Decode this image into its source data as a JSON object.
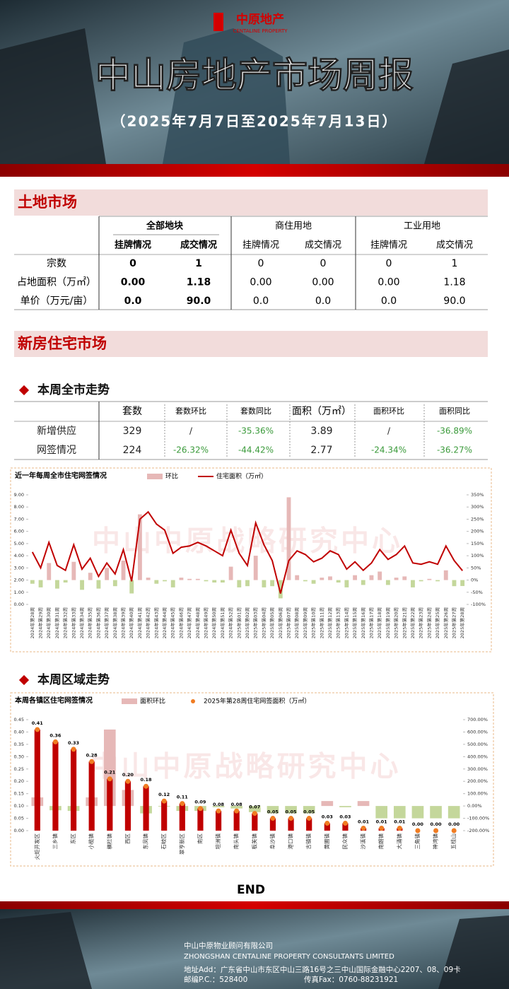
{
  "header": {
    "logo": "中原地产",
    "logo_en": "CENTALINE PROPERTY",
    "title": "中山房地产市场周报",
    "subtitle": "（2025年7月7日至2025年7月13日）"
  },
  "land_market": {
    "heading": "土地市场",
    "table": {
      "groups": [
        "全部地块",
        "商住用地",
        "工业用地"
      ],
      "columns": [
        "挂牌情况",
        "成交情况",
        "挂牌情况",
        "成交情况",
        "挂牌情况",
        "成交情况"
      ],
      "rows": [
        [
          "宗数",
          "0",
          "1",
          "0",
          "0",
          "0",
          "1"
        ],
        [
          "占地面积（万㎡）",
          "0.00",
          "1.18",
          "0.00",
          "0.00",
          "0.00",
          "1.18"
        ],
        [
          "单价（万元/亩）",
          "0.0",
          "90.0",
          "0.0",
          "0.0",
          "0.0",
          "90.0"
        ]
      ]
    }
  },
  "new_home_market": {
    "heading": "新房住宅市场",
    "city_trend": {
      "heading": "本周全市走势",
      "table": {
        "columns": [
          "套数",
          "套数环比",
          "套数同比",
          "面积（万㎡）",
          "面积环比",
          "面积同比"
        ],
        "rows": [
          [
            "新增供应",
            "329",
            "/",
            "-35.36%",
            "3.89",
            "/",
            "-36.89%"
          ],
          [
            "网签情况",
            "224",
            "-26.32%",
            "-44.42%",
            "2.77",
            "-24.34%",
            "-36.27%"
          ]
        ]
      }
    },
    "district_trend": {
      "heading": "本周区域走势"
    }
  },
  "watermark": "中山中原战略研究中心",
  "chart_data": [
    {
      "type": "combo",
      "title": "近一年每周全市住宅网签情况",
      "categories": [
        "2024年第28周",
        "2024年第29周",
        "2024年第30周",
        "2024年第31周",
        "2024年第32周",
        "2024年第33周",
        "2024年第34周",
        "2024年第35周",
        "2024年第36周",
        "2024年第37周",
        "2024年第38周",
        "2024年第39周",
        "2024年第40周",
        "2024年第41周",
        "2024年第42周",
        "2024年第43周",
        "2024年第44周",
        "2024年第45周",
        "2024年第46周",
        "2024年第47周",
        "2024年第48周",
        "2024年第49周",
        "2024年第50周",
        "2024年第51周",
        "2024年第52周",
        "2025年第01周",
        "2025年第02周",
        "2025年第03周",
        "2025年第04周",
        "2025年第05周",
        "2025年第06周",
        "2025年第07周",
        "2025年第08周",
        "2025年第09周",
        "2025年第10周",
        "2025年第11周",
        "2025年第12周",
        "2025年第13周",
        "2025年第14周",
        "2025年第15周",
        "2025年第16周",
        "2025年第17周",
        "2025年第18周",
        "2025年第19周",
        "2025年第20周",
        "2025年第21周",
        "2025年第22周",
        "2025年第23周",
        "2025年第24周",
        "2025年第25周",
        "2025年第26周",
        "2025年第27周",
        "2025年第28周"
      ],
      "series": [
        {
          "name": "环比",
          "type": "bar",
          "axis": "y2",
          "color": "#e6b8b7",
          "negative_color": "#c4d79b",
          "values": [
            -15,
            -30,
            70,
            -35,
            -10,
            75,
            -40,
            30,
            -35,
            50,
            -25,
            80,
            -55,
            270,
            10,
            -15,
            -5,
            -30,
            10,
            5,
            5,
            -5,
            -10,
            -10,
            55,
            -30,
            -25,
            100,
            -30,
            -25,
            -75,
            340,
            20,
            -5,
            -15,
            10,
            15,
            -10,
            -30,
            20,
            -20,
            20,
            35,
            -20,
            10,
            15,
            -30,
            -5,
            5,
            -5,
            40,
            -25,
            -24.34
          ]
        },
        {
          "name": "住宅面积（万㎡）",
          "type": "line",
          "color": "#c00000",
          "values": [
            4.3,
            3.0,
            5.1,
            3.2,
            2.8,
            4.9,
            2.9,
            3.8,
            2.3,
            3.4,
            2.5,
            4.5,
            1.9,
            7.0,
            7.6,
            6.6,
            6.1,
            4.2,
            4.7,
            4.8,
            5.1,
            4.8,
            4.4,
            4.0,
            6.1,
            4.2,
            3.2,
            6.7,
            4.9,
            3.6,
            0.9,
            3.6,
            4.4,
            4.1,
            3.5,
            3.8,
            4.4,
            4.1,
            2.9,
            3.5,
            2.8,
            3.4,
            4.5,
            3.7,
            4.1,
            4.8,
            3.4,
            3.3,
            3.5,
            3.3,
            4.8,
            3.6,
            2.77
          ]
        }
      ],
      "ylim": [
        0,
        9
      ],
      "yticks": [
        {
          "value": 0,
          "label": "0.00"
        },
        {
          "value": 1,
          "label": "1.00"
        },
        {
          "value": 2,
          "label": "2.00"
        },
        {
          "value": 3,
          "label": "3.00"
        },
        {
          "value": 4,
          "label": "4.00"
        },
        {
          "value": 5,
          "label": "5.00"
        },
        {
          "value": 6,
          "label": "6.00"
        },
        {
          "value": 7,
          "label": "7.00"
        },
        {
          "value": 8,
          "label": "8.00"
        },
        {
          "value": 9,
          "label": "9.00"
        }
      ],
      "y2lim": [
        -100,
        350
      ],
      "y2ticks": [
        {
          "value": -100,
          "label": "-100%"
        },
        {
          "value": -50,
          "label": "-50%"
        },
        {
          "value": 0,
          "label": "0%"
        },
        {
          "value": 50,
          "label": "50%"
        },
        {
          "value": 100,
          "label": "100%"
        },
        {
          "value": 150,
          "label": "150%"
        },
        {
          "value": 200,
          "label": "200%"
        },
        {
          "value": 250,
          "label": "250%"
        },
        {
          "value": 300,
          "label": "300%"
        },
        {
          "value": 350,
          "label": "350%"
        }
      ],
      "grid": false
    },
    {
      "type": "combo",
      "title": "本周各镇区住宅网签情况",
      "categories": [
        "火炬开发区",
        "三乡镇",
        "东区",
        "小榄镇",
        "横栏镇",
        "西区",
        "东凤镇",
        "石岐区",
        "翠亨新区",
        "南区",
        "坦洲镇",
        "南头镇",
        "板芙镇",
        "阜沙镇",
        "港口镇",
        "古镇镇",
        "黄圃镇",
        "民众镇",
        "沙溪镇",
        "南朗镇",
        "大涌镇",
        "三角镇",
        "神湾镇",
        "五桂山"
      ],
      "series": [
        {
          "name": "面积环比",
          "type": "bar",
          "axis": "y2",
          "color": "#e6b8b7",
          "negative_color": "#c4d79b",
          "values": [
            70,
            -35,
            -40,
            70,
            620,
            130,
            -60,
            -5,
            -40,
            -40,
            -10,
            -20,
            -50,
            -60,
            -60,
            -60,
            40,
            -10,
            40,
            -100,
            -100,
            -100,
            -100,
            -100
          ]
        },
        {
          "name": "2025年第28周住宅网签面积（万㎡）",
          "type": "bar_dot",
          "color": "#c00000",
          "marker_color": "#f07c22",
          "values": [
            0.41,
            0.36,
            0.33,
            0.28,
            0.21,
            0.2,
            0.18,
            0.12,
            0.11,
            0.09,
            0.08,
            0.08,
            0.07,
            0.05,
            0.05,
            0.05,
            0.03,
            0.03,
            0.01,
            0.01,
            0.01,
            0,
            0,
            0
          ],
          "value_labels": [
            "0.41",
            "0.36",
            "0.33",
            "0.28",
            "0.21",
            "0.20",
            "0.18",
            "0.12",
            "0.11",
            "0.09",
            "0.08",
            "0.08",
            "0.07",
            "0.05",
            "0.05",
            "0.05",
            "0.03",
            "0.03",
            "0.01",
            "0.01",
            "0.01",
            "0.00",
            "0.00",
            "0.00"
          ]
        }
      ],
      "ylim": [
        0,
        0.45
      ],
      "yticks": [
        {
          "value": 0,
          "label": "0.00"
        },
        {
          "value": 0.05,
          "label": "0.05"
        },
        {
          "value": 0.1,
          "label": "0.10"
        },
        {
          "value": 0.15,
          "label": "0.15"
        },
        {
          "value": 0.2,
          "label": "0.20"
        },
        {
          "value": 0.25,
          "label": "0.25"
        },
        {
          "value": 0.3,
          "label": "0.30"
        },
        {
          "value": 0.35,
          "label": "0.35"
        },
        {
          "value": 0.4,
          "label": "0.40"
        },
        {
          "value": 0.45,
          "label": "0.45"
        }
      ],
      "y2lim": [
        -200,
        700
      ],
      "y2ticks": [
        {
          "value": -200,
          "label": "-200.00%"
        },
        {
          "value": -100,
          "label": "-100.00%"
        },
        {
          "value": 0,
          "label": "0.00%"
        },
        {
          "value": 100,
          "label": "100.00%"
        },
        {
          "value": 200,
          "label": "200.00%"
        },
        {
          "value": 300,
          "label": "300.00%"
        },
        {
          "value": 400,
          "label": "400.00%"
        },
        {
          "value": 500,
          "label": "500.00%"
        },
        {
          "value": 600,
          "label": "600.00%"
        },
        {
          "value": 700,
          "label": "700.00%"
        }
      ],
      "grid": false
    }
  ],
  "end": "END",
  "footer": {
    "company": "中山中原物业顾问有限公司",
    "company_en": "ZHONGSHAN CENTALINE PROPERTY CONSULTANTS LIMITED",
    "address": "地址Add：广东省中山市东区中山三路16号之三中山国际金融中心2207、08、09卡",
    "postcode": "邮编P.C.：528400",
    "fax": "传真Fax：0760-88231921"
  }
}
